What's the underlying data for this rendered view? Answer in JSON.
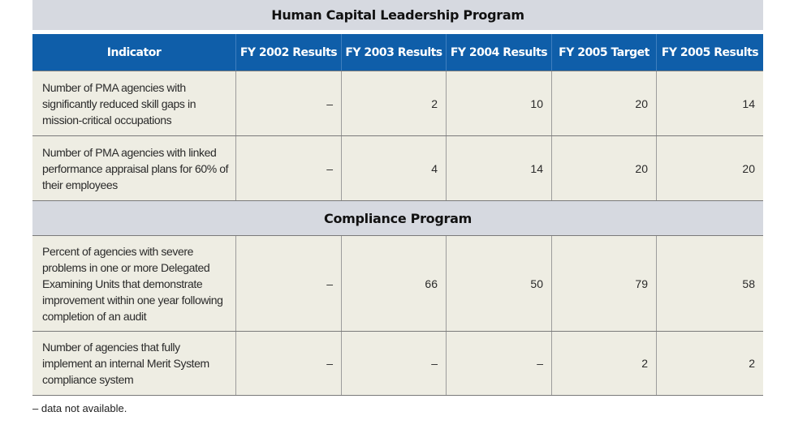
{
  "sections": {
    "first_title": "Human Capital Leadership Program",
    "second_title": "Compliance Program"
  },
  "headers": [
    "Indicator",
    "FY 2002 Results",
    "FY 2003 Results",
    "FY 2004 Results",
    "FY 2005 Target",
    "FY 2005 Results"
  ],
  "rows": [
    {
      "indicator": "Number of PMA agencies with significantly reduced skill gaps in mission-critical occupations",
      "values": [
        "–",
        "2",
        "10",
        "20",
        "14"
      ]
    },
    {
      "indicator": "Number of PMA agencies with linked performance appraisal plans for 60% of their employees",
      "values": [
        "–",
        "4",
        "14",
        "20",
        "20"
      ]
    },
    {
      "indicator": "Percent of agencies with severe problems in one or more Delegated Examining Units that demonstrate improvement within one year following completion of an audit",
      "values": [
        "–",
        "66",
        "50",
        "79",
        "58"
      ]
    },
    {
      "indicator": "Number of agencies that fully implement an internal Merit System compliance system",
      "values": [
        "–",
        "–",
        "–",
        "2",
        "2"
      ]
    }
  ],
  "footnote": "– data not available."
}
